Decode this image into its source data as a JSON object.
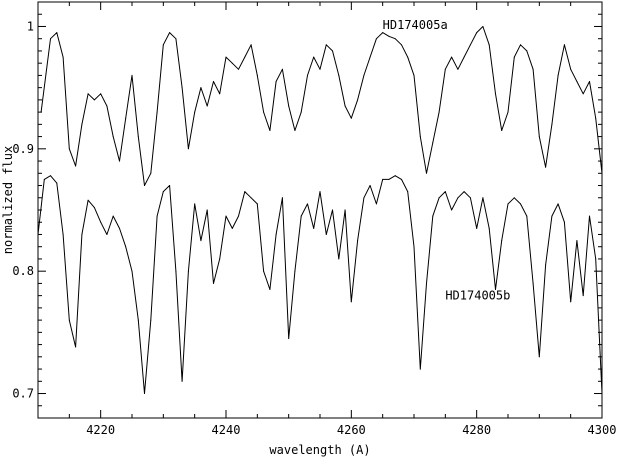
{
  "chart_data": {
    "type": "line",
    "title": "",
    "xlabel": "wavelength (A)",
    "ylabel": "normalized flux",
    "xlim": [
      4210,
      4300
    ],
    "ylim": [
      0.68,
      1.02
    ],
    "xticks": [
      4220,
      4240,
      4260,
      4280,
      4300
    ],
    "xtick_labels": [
      "4220",
      "4240",
      "4260",
      "4280",
      "4300"
    ],
    "yticks": [
      0.7,
      0.8,
      0.9,
      1.0
    ],
    "ytick_labels": [
      "0.7",
      "0.8",
      "0.9",
      "1"
    ],
    "grid": false,
    "legend": "none",
    "series": [
      {
        "name": "HD174005a",
        "color": "#000000",
        "x": [
          4210.5,
          4212,
          4213,
          4214,
          4215,
          4216,
          4217,
          4218,
          4219,
          4220,
          4221,
          4222,
          4223,
          4224,
          4225,
          4226,
          4227,
          4228,
          4229,
          4230,
          4231,
          4232,
          4233,
          4234,
          4235,
          4236,
          4237,
          4238,
          4239,
          4240,
          4241,
          4242,
          4243,
          4244,
          4245,
          4246,
          4247,
          4248,
          4249,
          4250,
          4251,
          4252,
          4253,
          4254,
          4255,
          4256,
          4257,
          4258,
          4259,
          4260,
          4261,
          4262,
          4263,
          4264,
          4265,
          4266,
          4267,
          4268,
          4269,
          4270,
          4271,
          4272,
          4273,
          4274,
          4275,
          4276,
          4277,
          4278,
          4279,
          4280,
          4281,
          4282,
          4283,
          4284,
          4285,
          4286,
          4287,
          4288,
          4289,
          4290,
          4291,
          4292,
          4293,
          4294,
          4295,
          4296,
          4297,
          4298,
          4299,
          4300
        ],
        "y": [
          0.93,
          0.99,
          0.995,
          0.975,
          0.9,
          0.886,
          0.92,
          0.945,
          0.94,
          0.945,
          0.935,
          0.91,
          0.89,
          0.925,
          0.96,
          0.91,
          0.87,
          0.88,
          0.93,
          0.985,
          0.995,
          0.99,
          0.95,
          0.9,
          0.93,
          0.95,
          0.935,
          0.955,
          0.945,
          0.975,
          0.97,
          0.965,
          0.975,
          0.985,
          0.96,
          0.93,
          0.915,
          0.955,
          0.965,
          0.935,
          0.915,
          0.93,
          0.96,
          0.975,
          0.965,
          0.985,
          0.98,
          0.96,
          0.935,
          0.925,
          0.94,
          0.96,
          0.975,
          0.99,
          0.995,
          0.992,
          0.99,
          0.985,
          0.975,
          0.96,
          0.91,
          0.88,
          0.905,
          0.93,
          0.965,
          0.975,
          0.965,
          0.975,
          0.985,
          0.995,
          1.0,
          0.985,
          0.945,
          0.915,
          0.93,
          0.975,
          0.985,
          0.98,
          0.965,
          0.91,
          0.885,
          0.92,
          0.96,
          0.985,
          0.965,
          0.955,
          0.945,
          0.955,
          0.925,
          0.88
        ]
      },
      {
        "name": "HD174005b",
        "color": "#000000",
        "x": [
          4210,
          4211,
          4212,
          4213,
          4214,
          4215,
          4216,
          4217,
          4218,
          4219,
          4220,
          4221,
          4222,
          4223,
          4224,
          4225,
          4226,
          4227,
          4228,
          4229,
          4230,
          4231,
          4232,
          4233,
          4234,
          4235,
          4236,
          4237,
          4238,
          4239,
          4240,
          4241,
          4242,
          4243,
          4244,
          4245,
          4246,
          4247,
          4248,
          4249,
          4250,
          4251,
          4252,
          4253,
          4254,
          4255,
          4256,
          4257,
          4258,
          4259,
          4260,
          4261,
          4262,
          4263,
          4264,
          4265,
          4266,
          4267,
          4268,
          4269,
          4270,
          4271,
          4272,
          4273,
          4274,
          4275,
          4276,
          4277,
          4278,
          4279,
          4280,
          4281,
          4282,
          4283,
          4284,
          4285,
          4286,
          4287,
          4288,
          4289,
          4290,
          4291,
          4292,
          4293,
          4294,
          4295,
          4296,
          4297,
          4298,
          4299,
          4300
        ],
        "y": [
          0.83,
          0.875,
          0.878,
          0.872,
          0.83,
          0.76,
          0.738,
          0.83,
          0.858,
          0.852,
          0.84,
          0.83,
          0.845,
          0.835,
          0.82,
          0.8,
          0.76,
          0.7,
          0.76,
          0.845,
          0.865,
          0.87,
          0.8,
          0.71,
          0.8,
          0.855,
          0.825,
          0.85,
          0.79,
          0.81,
          0.845,
          0.835,
          0.845,
          0.865,
          0.86,
          0.855,
          0.8,
          0.785,
          0.83,
          0.86,
          0.745,
          0.8,
          0.845,
          0.855,
          0.835,
          0.865,
          0.83,
          0.85,
          0.81,
          0.85,
          0.775,
          0.825,
          0.86,
          0.87,
          0.855,
          0.875,
          0.875,
          0.878,
          0.875,
          0.865,
          0.82,
          0.72,
          0.79,
          0.845,
          0.86,
          0.865,
          0.85,
          0.86,
          0.865,
          0.86,
          0.835,
          0.86,
          0.835,
          0.785,
          0.825,
          0.855,
          0.86,
          0.855,
          0.845,
          0.79,
          0.73,
          0.805,
          0.845,
          0.855,
          0.84,
          0.775,
          0.825,
          0.78,
          0.845,
          0.81,
          0.7
        ]
      }
    ],
    "annotations": [
      {
        "text": "HD174005a",
        "x": 4265,
        "y": 0.998
      },
      {
        "text": "HD174005b",
        "x": 4275,
        "y": 0.777
      }
    ]
  }
}
